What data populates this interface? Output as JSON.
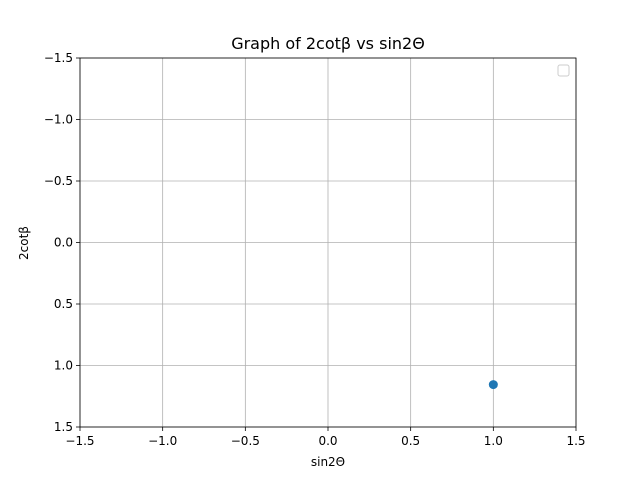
{
  "chart_data": {
    "type": "scatter",
    "title": "Graph of 2cotβ vs sin2Θ",
    "xlabel": "sin2Θ",
    "ylabel": "2cotβ",
    "xlim": [
      -1.5,
      1.5
    ],
    "ylim": [
      -1.5,
      1.5
    ],
    "y_inverted": true,
    "xticks": [
      -1.5,
      -1.0,
      -0.5,
      0.0,
      0.5,
      1.0,
      1.5
    ],
    "yticks": [
      -1.5,
      -1.0,
      -0.5,
      0.0,
      0.5,
      1.0,
      1.5
    ],
    "xtick_labels": [
      "−1.5",
      "−1.0",
      "−0.5",
      "0.0",
      "0.5",
      "1.0",
      "1.5"
    ],
    "ytick_labels": [
      "−1.5",
      "−1.0",
      "−0.5",
      "0.0",
      "0.5",
      "1.0",
      "1.5"
    ],
    "grid": true,
    "legend": "upper-right, empty",
    "series": [
      {
        "color": "#1f77b4",
        "points": [
          {
            "x": 1.0,
            "y": 1.155
          }
        ]
      }
    ]
  }
}
